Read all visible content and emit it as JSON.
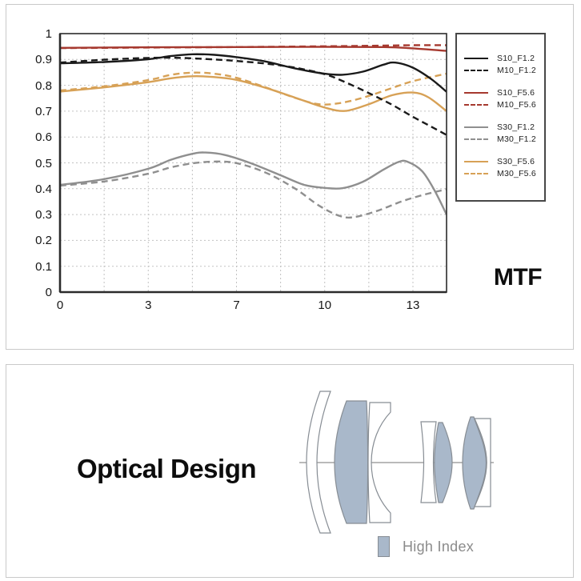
{
  "panels": {
    "mtf": {
      "title": "MTF"
    },
    "optical": {
      "title": "Optical Design",
      "legend_label": "High Index",
      "high_index_color": "#a9b8ca",
      "outline_color": "#878d94"
    }
  },
  "chart_data": {
    "type": "line",
    "title": "MTF",
    "xlabel": "",
    "ylabel": "",
    "grid": true,
    "legend_position": "outside-right",
    "x_axis": {
      "tick_labels": [
        "0",
        "3",
        "7",
        "10",
        "13"
      ],
      "tick_values": [
        0,
        3,
        7,
        10,
        13
      ],
      "max": 14.1
    },
    "y_axis": {
      "min": 0,
      "max": 1,
      "step": 0.1,
      "tick_labels": [
        "1",
        "0.9",
        "0.8",
        "0.7",
        "0.6",
        "0.5",
        "0.4",
        "0.3",
        "0.2",
        "0.1",
        "0"
      ]
    },
    "colors": {
      "black": "#1a1a1a",
      "red": "#a6392f",
      "gray": "#8f8f8f",
      "orange": "#d7a156"
    },
    "series": [
      {
        "name": "S10_F1.2",
        "color": "#1a1a1a",
        "style": "solid",
        "points": [
          [
            0,
            0.885
          ],
          [
            1.5,
            0.89
          ],
          [
            3,
            0.901
          ],
          [
            4,
            0.913
          ],
          [
            5,
            0.92
          ],
          [
            6,
            0.918
          ],
          [
            7,
            0.909
          ],
          [
            8,
            0.892
          ],
          [
            9,
            0.865
          ],
          [
            10,
            0.845
          ],
          [
            10.6,
            0.841
          ],
          [
            11.3,
            0.853
          ],
          [
            12,
            0.88
          ],
          [
            12.4,
            0.888
          ],
          [
            13,
            0.868
          ],
          [
            13.6,
            0.824
          ],
          [
            14.1,
            0.775
          ]
        ]
      },
      {
        "name": "M10_F1.2",
        "color": "#1a1a1a",
        "style": "dashed",
        "points": [
          [
            0,
            0.888
          ],
          [
            1.5,
            0.899
          ],
          [
            3,
            0.906
          ],
          [
            4.5,
            0.906
          ],
          [
            6,
            0.9
          ],
          [
            7,
            0.894
          ],
          [
            8,
            0.884
          ],
          [
            9,
            0.868
          ],
          [
            10,
            0.843
          ],
          [
            10.7,
            0.812
          ],
          [
            11.5,
            0.77
          ],
          [
            12.3,
            0.724
          ],
          [
            13,
            0.678
          ],
          [
            13.6,
            0.64
          ],
          [
            14.1,
            0.608
          ]
        ]
      },
      {
        "name": "S10_F5.6",
        "color": "#a6392f",
        "style": "solid",
        "points": [
          [
            0,
            0.945
          ],
          [
            3,
            0.947
          ],
          [
            7,
            0.948
          ],
          [
            10,
            0.949
          ],
          [
            12,
            0.948
          ],
          [
            13,
            0.943
          ],
          [
            14.1,
            0.933
          ]
        ]
      },
      {
        "name": "M10_F5.6",
        "color": "#a6392f",
        "style": "dashed",
        "points": [
          [
            0,
            0.944
          ],
          [
            3,
            0.946
          ],
          [
            7,
            0.948
          ],
          [
            10,
            0.951
          ],
          [
            11.5,
            0.953
          ],
          [
            13,
            0.955
          ],
          [
            14.1,
            0.955
          ]
        ]
      },
      {
        "name": "S30_F1.2",
        "color": "#8f8f8f",
        "style": "solid",
        "points": [
          [
            0,
            0.415
          ],
          [
            1.5,
            0.437
          ],
          [
            3,
            0.477
          ],
          [
            4,
            0.511
          ],
          [
            5,
            0.535
          ],
          [
            5.6,
            0.54
          ],
          [
            6.5,
            0.53
          ],
          [
            7.5,
            0.498
          ],
          [
            8.5,
            0.452
          ],
          [
            9.3,
            0.415
          ],
          [
            10,
            0.403
          ],
          [
            10.6,
            0.402
          ],
          [
            11.3,
            0.427
          ],
          [
            12,
            0.474
          ],
          [
            12.5,
            0.503
          ],
          [
            12.8,
            0.505
          ],
          [
            13.3,
            0.468
          ],
          [
            13.7,
            0.395
          ],
          [
            14.1,
            0.3
          ]
        ]
      },
      {
        "name": "M30_F1.2",
        "color": "#8f8f8f",
        "style": "dashed",
        "points": [
          [
            0,
            0.412
          ],
          [
            1.5,
            0.428
          ],
          [
            3,
            0.458
          ],
          [
            4,
            0.482
          ],
          [
            5,
            0.498
          ],
          [
            6,
            0.505
          ],
          [
            7,
            0.499
          ],
          [
            8,
            0.462
          ],
          [
            9,
            0.4
          ],
          [
            9.8,
            0.335
          ],
          [
            10.5,
            0.295
          ],
          [
            11,
            0.29
          ],
          [
            11.8,
            0.315
          ],
          [
            12.6,
            0.35
          ],
          [
            13.3,
            0.375
          ],
          [
            14.1,
            0.398
          ]
        ]
      },
      {
        "name": "S30_F5.6",
        "color": "#d7a156",
        "style": "solid",
        "points": [
          [
            0,
            0.776
          ],
          [
            1.5,
            0.792
          ],
          [
            3,
            0.812
          ],
          [
            4,
            0.827
          ],
          [
            5,
            0.835
          ],
          [
            6,
            0.832
          ],
          [
            7,
            0.821
          ],
          [
            8,
            0.79
          ],
          [
            9,
            0.752
          ],
          [
            10,
            0.714
          ],
          [
            10.7,
            0.701
          ],
          [
            11.5,
            0.727
          ],
          [
            12.3,
            0.762
          ],
          [
            13,
            0.772
          ],
          [
            13.5,
            0.754
          ],
          [
            14.1,
            0.7
          ]
        ]
      },
      {
        "name": "M30_F5.6",
        "color": "#d7a156",
        "style": "dashed",
        "points": [
          [
            0,
            0.78
          ],
          [
            1.5,
            0.796
          ],
          [
            3,
            0.82
          ],
          [
            4,
            0.84
          ],
          [
            5,
            0.849
          ],
          [
            6,
            0.845
          ],
          [
            7,
            0.829
          ],
          [
            8,
            0.792
          ],
          [
            9,
            0.751
          ],
          [
            9.8,
            0.727
          ],
          [
            10.5,
            0.731
          ],
          [
            11.3,
            0.752
          ],
          [
            12.2,
            0.786
          ],
          [
            13,
            0.816
          ],
          [
            14.1,
            0.845
          ]
        ]
      }
    ]
  }
}
